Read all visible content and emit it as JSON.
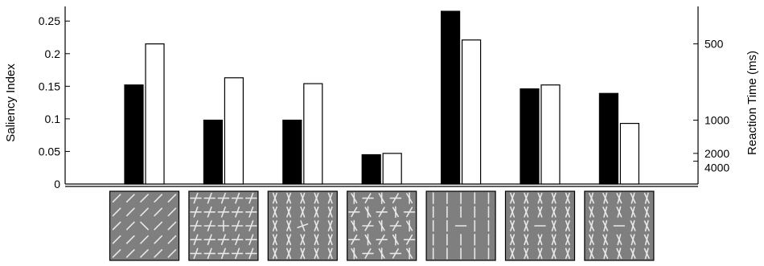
{
  "chart_data": {
    "type": "bar",
    "categories": [
      "Tilted bar among tilted bars",
      "Crosses among crosses",
      "Crosses among crosses (tilted)",
      "Mixed crosses",
      "Horizontal bar among vertical bars",
      "Bar among crosses",
      "Bar among crosses (sparse)"
    ],
    "series": [
      {
        "values": [
          0.152,
          0.098,
          0.098,
          0.045,
          0.265,
          0.146,
          0.139
        ],
        "color": "#000000"
      },
      {
        "values": [
          0.215,
          0.163,
          0.154,
          0.047,
          0.221,
          0.152,
          0.093
        ],
        "color": "#ffffff"
      }
    ],
    "ylabel": "Saliency Index",
    "ylim": [
      0,
      0.27
    ],
    "yticks": [
      "0",
      "0.05",
      "0.1",
      "0.15",
      "0.2",
      "0.25"
    ],
    "y2label": "Reaction Time (ms)",
    "y2ticks": [
      "500",
      "1000",
      "2000",
      "4000"
    ],
    "y2tick_positions": [
      0.215,
      0.098,
      0.047,
      0.035
    ],
    "grid": false,
    "legend": "none"
  },
  "stimuli": [
    {
      "name": "tilted-bars"
    },
    {
      "name": "crosses"
    },
    {
      "name": "tilted-crosses"
    },
    {
      "name": "mixed-crosses"
    },
    {
      "name": "vertical-bars"
    },
    {
      "name": "bar-among-crosses"
    },
    {
      "name": "sparse-crosses"
    }
  ]
}
